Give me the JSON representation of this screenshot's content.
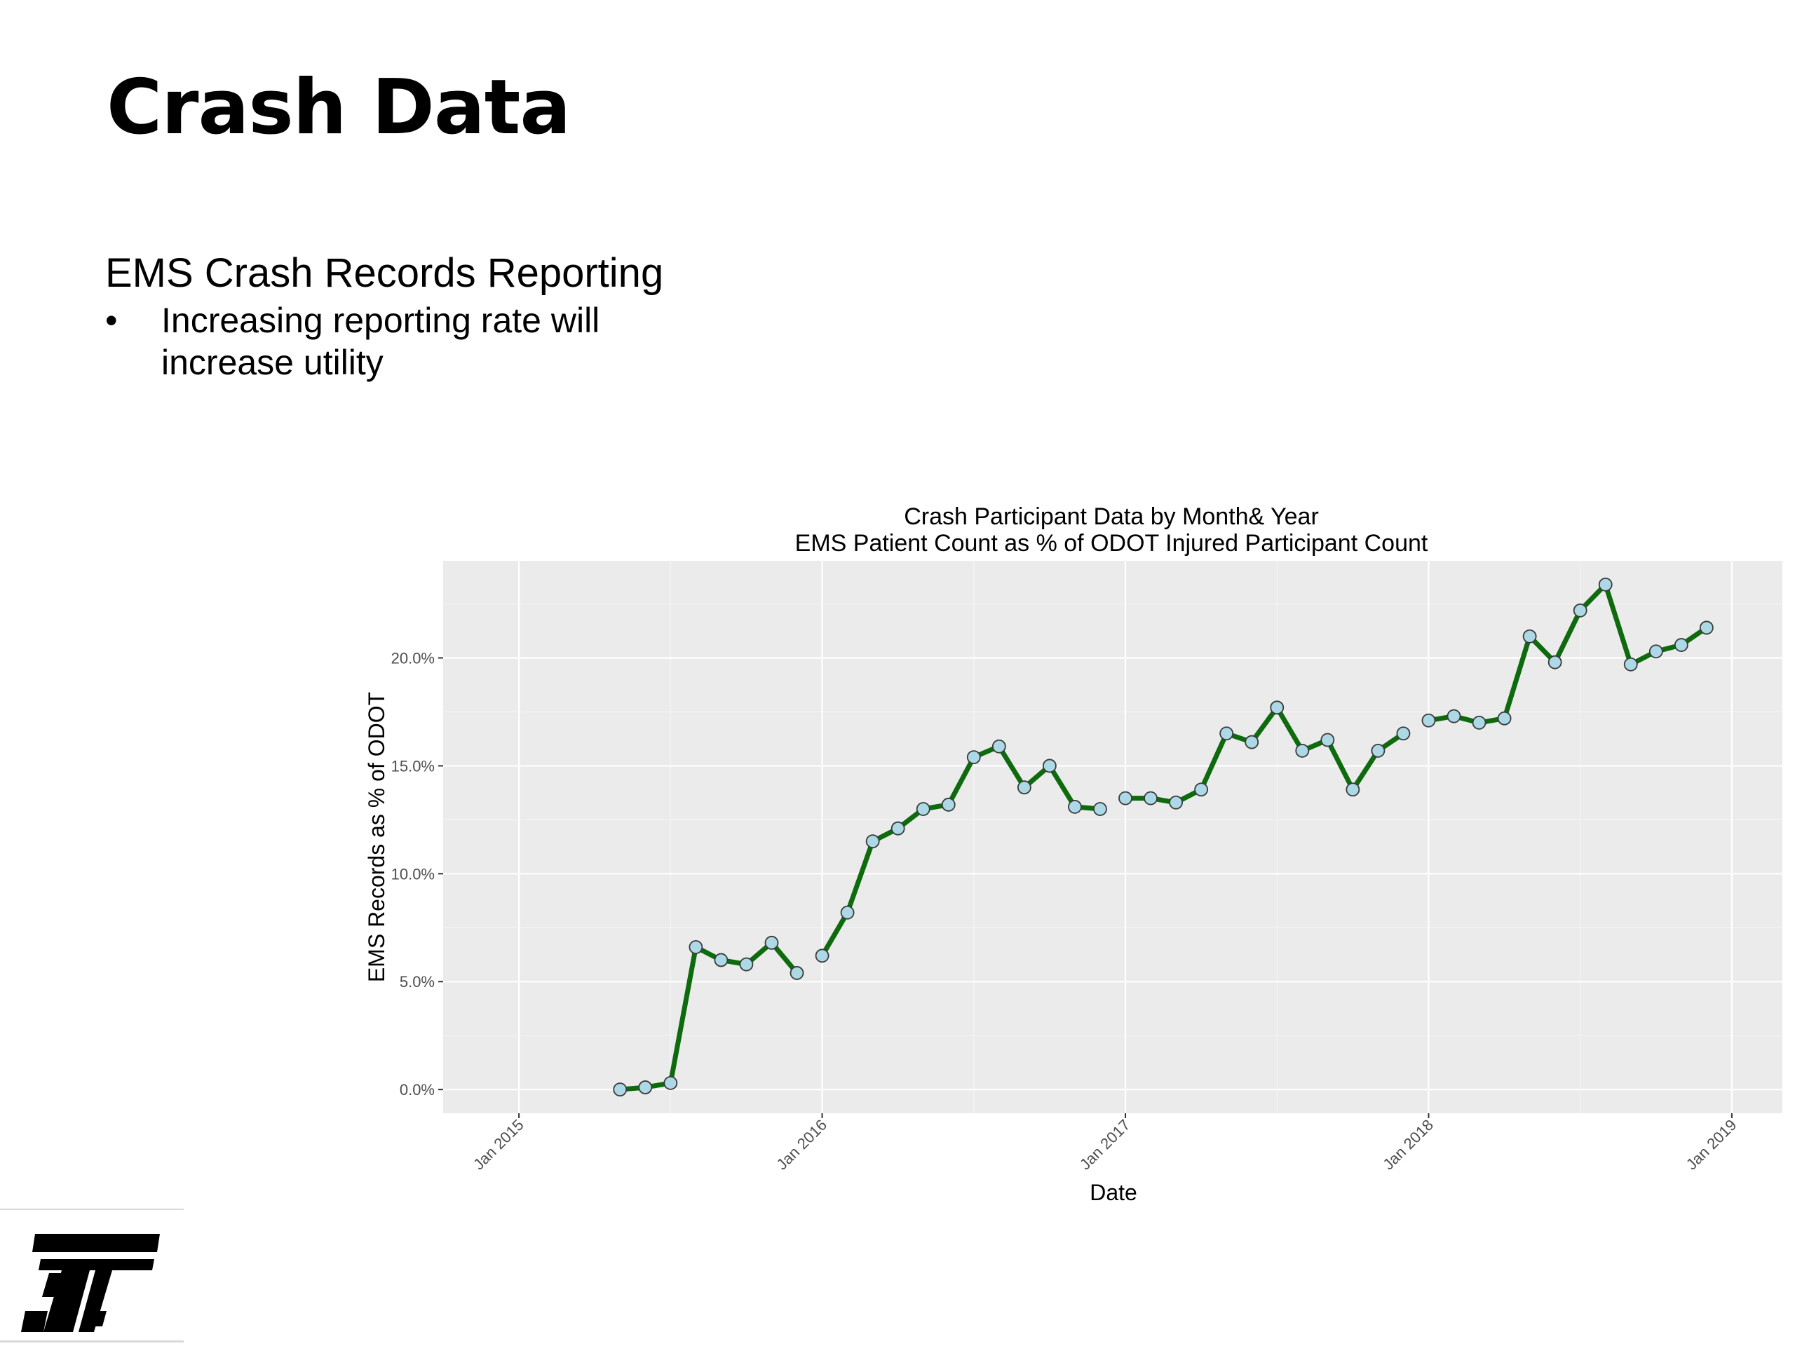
{
  "slide": {
    "title": "Crash Data",
    "section_heading": "EMS Crash Records Reporting",
    "bullets": [
      {
        "mark": "•",
        "text": "Increasing reporting rate will increase utility"
      }
    ]
  },
  "colors": {
    "panel_background": "#ebebeb",
    "grid_major": "#ffffff",
    "line": "#0d6b0d",
    "point_fill": "#add8e6",
    "point_stroke": "#3a3a3a",
    "tick_text": "#4d4d4d",
    "logo": "#000000"
  },
  "logo": {
    "icon": "odot-logo-icon"
  },
  "chart_data": {
    "type": "line",
    "title": "Crash Participant Data by Month& Year",
    "subtitle": "EMS Patient Count as % of ODOT Injured Participant Count",
    "xlabel": "Date",
    "ylabel": "EMS Records as % of ODOT",
    "x_ticks": [
      "Jan 2015",
      "Jan 2016",
      "Jan 2017",
      "Jan 2018",
      "Jan 2019"
    ],
    "y_ticks": [
      "0.0%",
      "5.0%",
      "10.0%",
      "15.0%",
      "20.0%"
    ],
    "y_tick_values": [
      0,
      5,
      10,
      15,
      20
    ],
    "xlim": [
      "2014-10",
      "2019-03"
    ],
    "ylim": [
      -1.1,
      24.5
    ],
    "grid": true,
    "legend": "none",
    "series": [
      {
        "segments": [
          {
            "x": [
              "2015-05",
              "2015-06",
              "2015-07",
              "2015-08",
              "2015-09",
              "2015-10",
              "2015-11",
              "2015-12"
            ],
            "y": [
              0.0,
              0.1,
              0.3,
              6.6,
              6.0,
              5.8,
              6.8,
              5.4
            ]
          },
          {
            "x": [
              "2016-01",
              "2016-02",
              "2016-03",
              "2016-04",
              "2016-05",
              "2016-06",
              "2016-07",
              "2016-08",
              "2016-09",
              "2016-10",
              "2016-11",
              "2016-12"
            ],
            "y": [
              6.2,
              8.2,
              11.5,
              12.1,
              13.0,
              13.2,
              15.4,
              15.9,
              14.0,
              15.0,
              13.1,
              13.0
            ]
          },
          {
            "x": [
              "2017-01",
              "2017-02",
              "2017-03",
              "2017-04",
              "2017-05",
              "2017-06",
              "2017-07",
              "2017-08",
              "2017-09",
              "2017-10",
              "2017-11",
              "2017-12"
            ],
            "y": [
              13.5,
              13.5,
              13.3,
              13.9,
              16.5,
              16.1,
              17.7,
              15.7,
              16.2,
              13.9,
              15.7,
              16.5
            ]
          },
          {
            "x": [
              "2018-01",
              "2018-02",
              "2018-03",
              "2018-04",
              "2018-05",
              "2018-06",
              "2018-07",
              "2018-08",
              "2018-09",
              "2018-10",
              "2018-11",
              "2018-12"
            ],
            "y": [
              17.1,
              17.3,
              17.0,
              17.2,
              21.0,
              19.8,
              22.2,
              23.4,
              19.7,
              20.3,
              20.6,
              21.4
            ]
          }
        ]
      }
    ]
  }
}
